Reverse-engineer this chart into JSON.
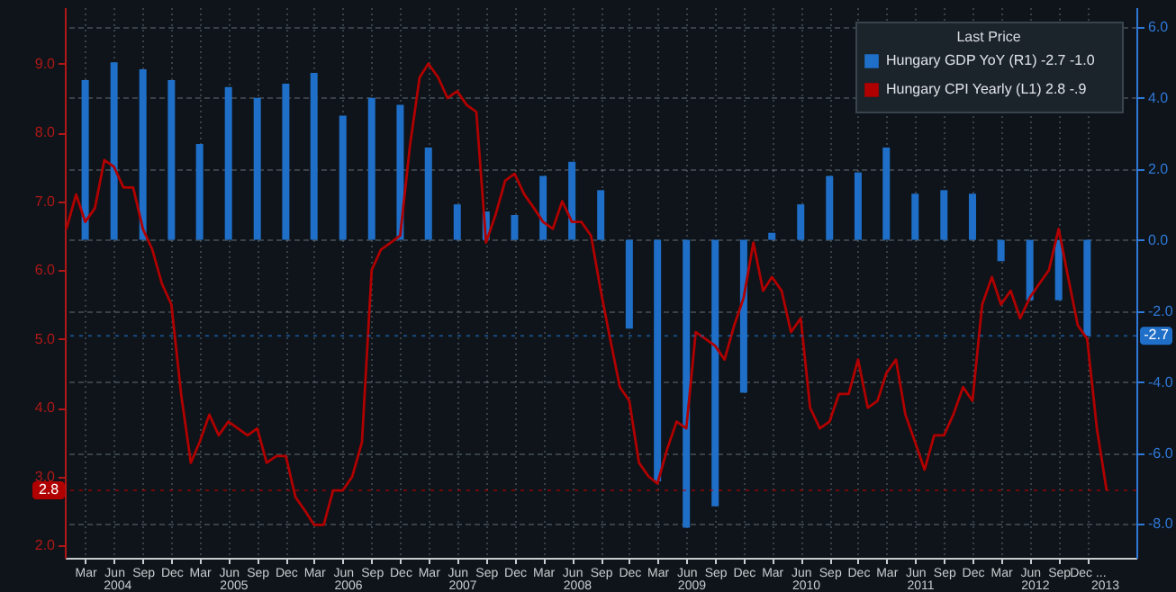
{
  "chart_data": {
    "type": "bar",
    "legend_title": "Last Price",
    "legend": "top right",
    "grid": true,
    "xlim": [
      "2003-12-27",
      "2013-05-07"
    ],
    "xticks": [
      {
        "value": "2004-03",
        "label": "Mar"
      },
      {
        "value": "2004-06",
        "label": "Jun"
      },
      {
        "value": "2004-09",
        "label": "Sep"
      },
      {
        "value": "2004-12",
        "label": "Dec"
      },
      {
        "value": "2005-03",
        "label": "Mar"
      },
      {
        "value": "2005-06",
        "label": "Jun"
      },
      {
        "value": "2005-09",
        "label": "Sep"
      },
      {
        "value": "2005-12",
        "label": "Dec"
      },
      {
        "value": "2006-03",
        "label": "Mar"
      },
      {
        "value": "2006-06",
        "label": "Jun"
      },
      {
        "value": "2006-09",
        "label": "Sep"
      },
      {
        "value": "2006-12",
        "label": "Dec"
      },
      {
        "value": "2007-03",
        "label": "Mar"
      },
      {
        "value": "2007-06",
        "label": "Jun"
      },
      {
        "value": "2007-09",
        "label": "Sep"
      },
      {
        "value": "2007-12",
        "label": "Dec"
      },
      {
        "value": "2008-03",
        "label": "Mar"
      },
      {
        "value": "2008-06",
        "label": "Jun"
      },
      {
        "value": "2008-09",
        "label": "Sep"
      },
      {
        "value": "2008-12",
        "label": "Dec"
      },
      {
        "value": "2009-03",
        "label": "Mar"
      },
      {
        "value": "2009-06",
        "label": "Jun"
      },
      {
        "value": "2009-09",
        "label": "Sep"
      },
      {
        "value": "2009-12",
        "label": "Dec"
      },
      {
        "value": "2010-03",
        "label": "Mar"
      },
      {
        "value": "2010-06",
        "label": "Jun"
      },
      {
        "value": "2010-09",
        "label": "Sep"
      },
      {
        "value": "2010-12",
        "label": "Dec"
      },
      {
        "value": "2011-03",
        "label": "Mar"
      },
      {
        "value": "2011-06",
        "label": "Jun"
      },
      {
        "value": "2011-09",
        "label": "Sep"
      },
      {
        "value": "2011-12",
        "label": "Dec"
      },
      {
        "value": "2012-03",
        "label": "Mar"
      },
      {
        "value": "2012-06",
        "label": "Jun"
      },
      {
        "value": "2012-09",
        "label": "Sep"
      },
      {
        "value": "2012-12",
        "label": "Dec ..."
      }
    ],
    "x2lim": [
      "2003-12-27",
      "2013-05-07"
    ],
    "x2ticks": [
      {
        "value": "2004-06-10",
        "label": "2004"
      },
      {
        "value": "2005-06-16",
        "label": "2005"
      },
      {
        "value": "2006-06-16",
        "label": "2006"
      },
      {
        "value": "2007-06-16",
        "label": "2007"
      },
      {
        "value": "2008-06-16",
        "label": "2008"
      },
      {
        "value": "2009-06-16",
        "label": "2009"
      },
      {
        "value": "2010-06-16",
        "label": "2010"
      },
      {
        "value": "2011-06-16",
        "label": "2011"
      },
      {
        "value": "2012-06-16",
        "label": "2012"
      },
      {
        "value": "2013-01-25",
        "label": "2013"
      }
    ],
    "ylim": [
      1.82,
      9.82
    ],
    "yticks": [
      {
        "value": 2,
        "label": "2.0"
      },
      {
        "value": 3,
        "label": "3.0"
      },
      {
        "value": 4,
        "label": "4.0"
      },
      {
        "value": 5,
        "label": "5.0"
      },
      {
        "value": 6,
        "label": "6.0"
      },
      {
        "value": 7,
        "label": "7.0"
      },
      {
        "value": 8,
        "label": "8.0"
      },
      {
        "value": 9,
        "label": "9.0"
      }
    ],
    "y2lim": [
      -8.95,
      6.55
    ],
    "y2ticks": [
      {
        "value": -8,
        "label": "-8.0"
      },
      {
        "value": -6,
        "label": "-6.0"
      },
      {
        "value": -4,
        "label": "-4.0"
      },
      {
        "value": -2,
        "label": "-2.0"
      },
      {
        "value": 0,
        "label": "0.0"
      },
      {
        "value": 2,
        "label": "2.0"
      },
      {
        "value": 4,
        "label": "4.0"
      },
      {
        "value": 6,
        "label": "6.0"
      }
    ],
    "ref_lines": [
      {
        "axis": "y2",
        "value": -2.7,
        "label": "-2.7",
        "color": "#1f6fc8"
      },
      {
        "axis": "y",
        "value": 2.8,
        "label": "2.8",
        "color": "#b00000"
      }
    ],
    "series": [
      {
        "name": "Hungary GDP YoY  (R1)   -2.7  -1.0",
        "axis": "y2",
        "color": "#1f6fc8",
        "x": [
          "2004-03",
          "2004-06",
          "2004-09",
          "2004-12",
          "2005-03",
          "2005-06",
          "2005-09",
          "2005-12",
          "2006-03",
          "2006-06",
          "2006-09",
          "2006-12",
          "2007-03",
          "2007-06",
          "2007-09",
          "2007-12",
          "2008-03",
          "2008-06",
          "2008-09",
          "2008-12",
          "2009-03",
          "2009-06",
          "2009-09",
          "2009-12",
          "2010-03",
          "2010-06",
          "2010-09",
          "2010-12",
          "2011-03",
          "2011-06",
          "2011-09",
          "2011-12",
          "2012-03",
          "2012-06",
          "2012-09",
          "2012-12"
        ],
        "values": [
          4.5,
          5.0,
          4.8,
          4.5,
          2.7,
          4.3,
          4.0,
          4.4,
          4.7,
          3.5,
          4.0,
          3.8,
          2.6,
          1.0,
          0.8,
          0.7,
          1.8,
          2.2,
          1.4,
          -2.5,
          -6.8,
          -8.1,
          -7.5,
          -4.3,
          0.2,
          1.0,
          1.8,
          1.9,
          2.6,
          1.3,
          1.4,
          1.3,
          -0.6,
          -1.7,
          -1.7,
          -2.7
        ]
      },
      {
        "name": "Hungary CPI Yearly  (L1) 2.8   -.9",
        "type": "line",
        "axis": "y",
        "color": "#b00000",
        "x": [
          "2004-01",
          "2004-02",
          "2004-03",
          "2004-04",
          "2004-05",
          "2004-06",
          "2004-07",
          "2004-08",
          "2004-09",
          "2004-10",
          "2004-11",
          "2004-12",
          "2005-01",
          "2005-02",
          "2005-03",
          "2005-04",
          "2005-05",
          "2005-06",
          "2005-07",
          "2005-08",
          "2005-09",
          "2005-10",
          "2005-11",
          "2005-12",
          "2006-01",
          "2006-02",
          "2006-03",
          "2006-04",
          "2006-05",
          "2006-06",
          "2006-07",
          "2006-08",
          "2006-09",
          "2006-10",
          "2006-11",
          "2006-12",
          "2007-01",
          "2007-02",
          "2007-03",
          "2007-04",
          "2007-05",
          "2007-06",
          "2007-07",
          "2007-08",
          "2007-09",
          "2007-10",
          "2007-11",
          "2007-12",
          "2008-01",
          "2008-02",
          "2008-03",
          "2008-04",
          "2008-05",
          "2008-06",
          "2008-07",
          "2008-08",
          "2008-09",
          "2008-10",
          "2008-11",
          "2008-12",
          "2009-01",
          "2009-02",
          "2009-03",
          "2009-04",
          "2009-05",
          "2009-06",
          "2009-07",
          "2009-08",
          "2009-09",
          "2009-10",
          "2009-11",
          "2009-12",
          "2010-01",
          "2010-02",
          "2010-03",
          "2010-04",
          "2010-05",
          "2010-06",
          "2010-07",
          "2010-08",
          "2010-09",
          "2010-10",
          "2010-11",
          "2010-12",
          "2011-01",
          "2011-02",
          "2011-03",
          "2011-04",
          "2011-05",
          "2011-06",
          "2011-07",
          "2011-08",
          "2011-09",
          "2011-10",
          "2011-11",
          "2011-12",
          "2012-01",
          "2012-02",
          "2012-03",
          "2012-04",
          "2012-05",
          "2012-06",
          "2012-07",
          "2012-08",
          "2012-09",
          "2012-10",
          "2012-11",
          "2012-12",
          "2013-01",
          "2013-02"
        ],
        "values": [
          6.6,
          7.1,
          6.7,
          6.9,
          7.6,
          7.5,
          7.2,
          7.2,
          6.6,
          6.3,
          5.8,
          5.5,
          4.2,
          3.2,
          3.5,
          3.9,
          3.6,
          3.8,
          3.7,
          3.6,
          3.7,
          3.2,
          3.3,
          3.3,
          2.7,
          2.5,
          2.3,
          2.3,
          2.8,
          2.8,
          3.0,
          3.5,
          6.0,
          6.3,
          6.4,
          6.5,
          7.8,
          8.8,
          9.0,
          8.8,
          8.5,
          8.6,
          8.4,
          8.3,
          6.4,
          6.8,
          7.3,
          7.4,
          7.1,
          6.9,
          6.7,
          6.6,
          7.0,
          6.7,
          6.7,
          6.5,
          5.7,
          5.0,
          4.3,
          4.1,
          3.2,
          3.0,
          2.9,
          3.4,
          3.8,
          3.7,
          5.1,
          5.0,
          4.9,
          4.7,
          5.2,
          5.6,
          6.4,
          5.7,
          5.9,
          5.7,
          5.1,
          5.3,
          4.0,
          3.7,
          3.8,
          4.2,
          4.2,
          4.7,
          4.0,
          4.1,
          4.5,
          4.7,
          3.9,
          3.5,
          3.1,
          3.6,
          3.6,
          3.9,
          4.3,
          4.1,
          5.5,
          5.9,
          5.5,
          5.7,
          5.3,
          5.6,
          5.8,
          6.0,
          6.6,
          5.9,
          5.2,
          5.0,
          3.7,
          2.8
        ]
      }
    ]
  }
}
